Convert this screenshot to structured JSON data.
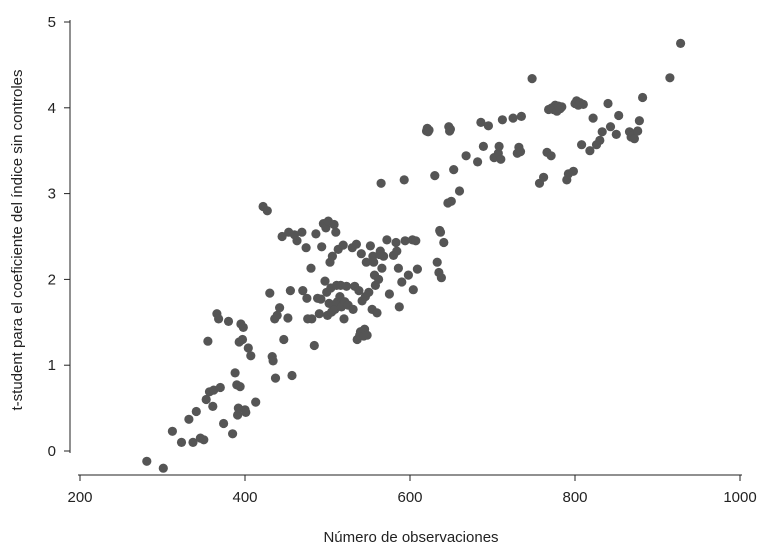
{
  "chart_data": {
    "type": "scatter",
    "title": "",
    "xlabel": "Número de observaciones",
    "ylabel": "t-student para el coeficiente del índice sin controles",
    "xlim": [
      200,
      1000
    ],
    "ylim": [
      -0.2,
      5
    ],
    "xticks": [
      200,
      400,
      600,
      800,
      1000
    ],
    "yticks": [
      0,
      1,
      2,
      3,
      4,
      5
    ],
    "xtick_labels": [
      "200",
      "400",
      "600",
      "800",
      "1000"
    ],
    "ytick_labels": [
      "0",
      "1",
      "2",
      "3",
      "4",
      "5"
    ],
    "grid": false,
    "legend": "none",
    "marker_color": "#555555",
    "series": [
      {
        "points": [
          [
            281,
            -0.12
          ],
          [
            301,
            -0.2
          ],
          [
            312,
            0.23
          ],
          [
            323,
            0.1
          ],
          [
            332,
            0.37
          ],
          [
            337,
            0.1
          ],
          [
            341,
            0.46
          ],
          [
            346,
            0.15
          ],
          [
            350,
            0.13
          ],
          [
            353,
            0.6
          ],
          [
            355,
            1.28
          ],
          [
            357,
            0.69
          ],
          [
            361,
            0.52
          ],
          [
            362,
            0.71
          ],
          [
            366,
            1.6
          ],
          [
            368,
            1.54
          ],
          [
            370,
            0.74
          ],
          [
            374,
            0.32
          ],
          [
            380,
            1.51
          ],
          [
            385,
            0.2
          ],
          [
            388,
            0.91
          ],
          [
            390,
            0.77
          ],
          [
            391,
            0.42
          ],
          [
            392,
            0.5
          ],
          [
            393,
            1.27
          ],
          [
            394,
            0.75
          ],
          [
            395,
            1.48
          ],
          [
            397,
            1.3
          ],
          [
            398,
            1.44
          ],
          [
            400,
            0.48
          ],
          [
            401,
            0.45
          ],
          [
            404,
            1.2
          ],
          [
            407,
            1.11
          ],
          [
            413,
            0.57
          ],
          [
            422,
            2.85
          ],
          [
            427,
            2.8
          ],
          [
            430,
            1.84
          ],
          [
            433,
            1.1
          ],
          [
            434,
            1.05
          ],
          [
            436,
            1.54
          ],
          [
            437,
            0.85
          ],
          [
            439,
            1.58
          ],
          [
            442,
            1.67
          ],
          [
            445,
            2.5
          ],
          [
            447,
            1.3
          ],
          [
            452,
            1.55
          ],
          [
            453,
            2.55
          ],
          [
            455,
            1.87
          ],
          [
            457,
            0.88
          ],
          [
            460,
            2.52
          ],
          [
            463,
            2.45
          ],
          [
            469,
            2.55
          ],
          [
            470,
            1.87
          ],
          [
            474,
            2.37
          ],
          [
            475,
            1.78
          ],
          [
            476,
            1.54
          ],
          [
            480,
            2.13
          ],
          [
            481,
            1.54
          ],
          [
            484,
            1.23
          ],
          [
            486,
            2.53
          ],
          [
            488,
            1.78
          ],
          [
            490,
            1.6
          ],
          [
            492,
            1.77
          ],
          [
            493,
            2.38
          ],
          [
            495,
            2.65
          ],
          [
            497,
            1.98
          ],
          [
            498,
            2.6
          ],
          [
            499,
            1.85
          ],
          [
            500,
            1.58
          ],
          [
            501,
            2.68
          ],
          [
            502,
            1.72
          ],
          [
            503,
            2.2
          ],
          [
            504,
            1.9
          ],
          [
            505,
            1.62
          ],
          [
            506,
            2.27
          ],
          [
            507,
            1.7
          ],
          [
            508,
            2.64
          ],
          [
            509,
            1.65
          ],
          [
            510,
            2.55
          ],
          [
            511,
            1.93
          ],
          [
            512,
            1.74
          ],
          [
            513,
            2.35
          ],
          [
            515,
            1.8
          ],
          [
            516,
            1.93
          ],
          [
            517,
            1.68
          ],
          [
            519,
            2.4
          ],
          [
            520,
            1.54
          ],
          [
            521,
            1.74
          ],
          [
            523,
            1.92
          ],
          [
            525,
            1.7
          ],
          [
            530,
            2.37
          ],
          [
            531,
            1.65
          ],
          [
            533,
            1.92
          ],
          [
            535,
            2.41
          ],
          [
            536,
            1.3
          ],
          [
            538,
            1.87
          ],
          [
            539,
            1.35
          ],
          [
            540,
            1.39
          ],
          [
            541,
            2.3
          ],
          [
            542,
            1.75
          ],
          [
            544,
            1.34
          ],
          [
            545,
            1.42
          ],
          [
            546,
            1.8
          ],
          [
            547,
            2.2
          ],
          [
            548,
            1.35
          ],
          [
            550,
            1.85
          ],
          [
            552,
            2.39
          ],
          [
            554,
            1.65
          ],
          [
            555,
            2.27
          ],
          [
            556,
            2.2
          ],
          [
            557,
            2.05
          ],
          [
            558,
            1.93
          ],
          [
            560,
            1.61
          ],
          [
            562,
            2.0
          ],
          [
            563,
            2.29
          ],
          [
            564,
            2.33
          ],
          [
            565,
            3.12
          ],
          [
            566,
            2.13
          ],
          [
            568,
            2.27
          ],
          [
            572,
            2.46
          ],
          [
            575,
            1.83
          ],
          [
            580,
            2.28
          ],
          [
            583,
            2.43
          ],
          [
            584,
            2.33
          ],
          [
            586,
            2.13
          ],
          [
            587,
            1.68
          ],
          [
            590,
            1.97
          ],
          [
            593,
            3.16
          ],
          [
            594,
            2.45
          ],
          [
            598,
            2.05
          ],
          [
            603,
            2.46
          ],
          [
            604,
            1.88
          ],
          [
            607,
            2.45
          ],
          [
            609,
            2.12
          ],
          [
            620,
            3.73
          ],
          [
            621,
            3.76
          ],
          [
            622,
            3.72
          ],
          [
            623,
            3.74
          ],
          [
            630,
            3.21
          ],
          [
            633,
            2.2
          ],
          [
            635,
            2.08
          ],
          [
            636,
            2.57
          ],
          [
            637,
            2.55
          ],
          [
            638,
            2.02
          ],
          [
            641,
            2.43
          ],
          [
            646,
            2.89
          ],
          [
            647,
            3.78
          ],
          [
            648,
            3.73
          ],
          [
            649,
            3.75
          ],
          [
            650,
            2.91
          ],
          [
            653,
            3.28
          ],
          [
            660,
            3.03
          ],
          [
            668,
            3.44
          ],
          [
            682,
            3.37
          ],
          [
            686,
            3.83
          ],
          [
            689,
            3.55
          ],
          [
            695,
            3.79
          ],
          [
            702,
            3.42
          ],
          [
            705,
            3.43
          ],
          [
            707,
            3.47
          ],
          [
            708,
            3.55
          ],
          [
            710,
            3.4
          ],
          [
            712,
            3.86
          ],
          [
            725,
            3.88
          ],
          [
            730,
            3.47
          ],
          [
            732,
            3.54
          ],
          [
            734,
            3.49
          ],
          [
            735,
            3.9
          ],
          [
            748,
            4.34
          ],
          [
            757,
            3.12
          ],
          [
            762,
            3.19
          ],
          [
            766,
            3.48
          ],
          [
            768,
            3.98
          ],
          [
            771,
            3.44
          ],
          [
            772,
            4.0
          ],
          [
            774,
            3.98
          ],
          [
            776,
            4.03
          ],
          [
            778,
            3.96
          ],
          [
            780,
            4.02
          ],
          [
            782,
            3.99
          ],
          [
            784,
            4.01
          ],
          [
            790,
            3.16
          ],
          [
            792,
            3.23
          ],
          [
            798,
            3.26
          ],
          [
            800,
            4.05
          ],
          [
            802,
            4.08
          ],
          [
            804,
            4.03
          ],
          [
            806,
            4.06
          ],
          [
            808,
            3.57
          ],
          [
            810,
            4.04
          ],
          [
            818,
            3.5
          ],
          [
            822,
            3.88
          ],
          [
            826,
            3.57
          ],
          [
            830,
            3.62
          ],
          [
            833,
            3.72
          ],
          [
            840,
            4.05
          ],
          [
            843,
            3.78
          ],
          [
            850,
            3.69
          ],
          [
            853,
            3.91
          ],
          [
            866,
            3.72
          ],
          [
            868,
            3.66
          ],
          [
            870,
            3.68
          ],
          [
            872,
            3.64
          ],
          [
            876,
            3.73
          ],
          [
            878,
            3.85
          ],
          [
            882,
            4.12
          ],
          [
            915,
            4.35
          ],
          [
            928,
            4.75
          ]
        ]
      }
    ]
  }
}
